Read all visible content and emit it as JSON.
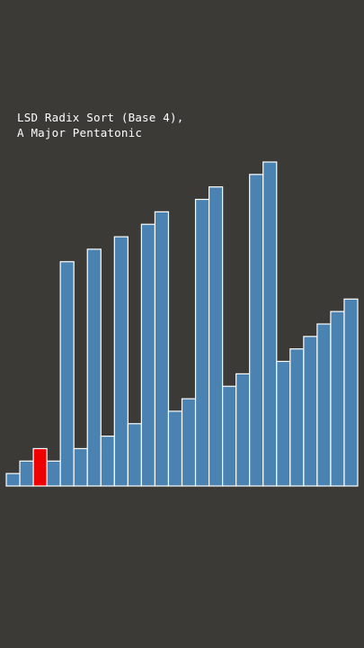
{
  "title": {
    "line1": "LSD Radix Sort (Base 4),",
    "line2": "A Major Pentatonic"
  },
  "colors": {
    "background": "#3b3a36",
    "bar": "#4a82b2",
    "highlight": "#ee0000",
    "bar_border": "#ffffff"
  },
  "chart_data": {
    "type": "bar",
    "title": "LSD Radix Sort (Base 4), A Major Pentatonic",
    "xlabel": "",
    "ylabel": "",
    "ylim": [
      0,
      26
    ],
    "highlight_index": 2,
    "values": [
      1,
      2,
      3,
      2,
      18,
      3,
      19,
      4,
      20,
      5,
      21,
      22,
      6,
      7,
      23,
      24,
      8,
      9,
      25,
      26,
      10,
      11,
      12,
      13,
      14,
      15
    ]
  }
}
